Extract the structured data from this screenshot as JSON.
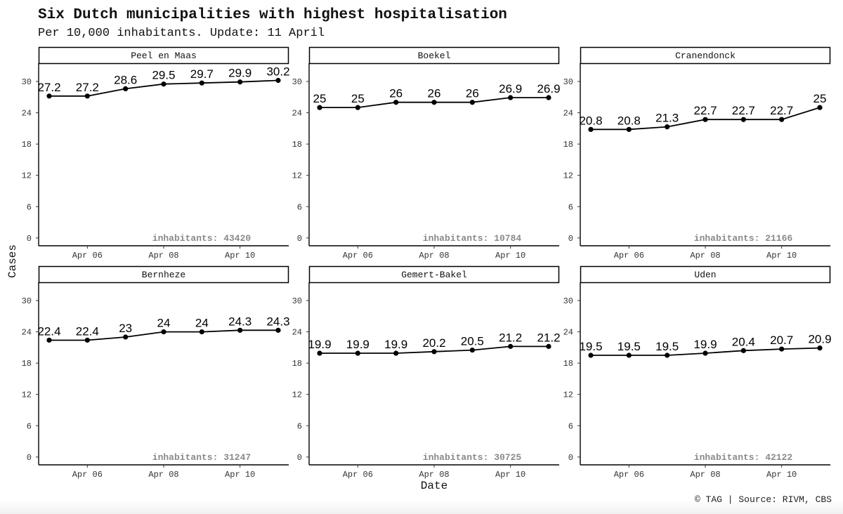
{
  "chart_data": {
    "type": "line",
    "title": "Six Dutch municipalities with highest hospitalisation",
    "subtitle": "Per 10,000 inhabitants. Update: 11 April",
    "caption": "© TAG | Source: RIVM, CBS",
    "xlabel": "Date",
    "ylabel": "Cases",
    "x": [
      "2020-04-05",
      "2020-04-06",
      "2020-04-07",
      "2020-04-08",
      "2020-04-09",
      "2020-04-10",
      "2020-04-11"
    ],
    "x_ticks": [
      {
        "date": "2020-04-06",
        "label": "Apr 06"
      },
      {
        "date": "2020-04-08",
        "label": "Apr 08"
      },
      {
        "date": "2020-04-10",
        "label": "Apr 10"
      }
    ],
    "y_ticks": [
      0,
      6,
      12,
      18,
      24,
      30
    ],
    "ylim": [
      -1.5,
      33.5
    ],
    "grid": false,
    "panels": [
      {
        "name": "Peel en Maas",
        "inhabitants_label": "inhabitants: 43420",
        "values": [
          27.2,
          27.2,
          28.6,
          29.5,
          29.7,
          29.9,
          30.2
        ],
        "labels": [
          "27.2",
          "27.2",
          "28.6",
          "29.5",
          "29.7",
          "29.9",
          "30.2"
        ]
      },
      {
        "name": "Boekel",
        "inhabitants_label": "inhabitants: 10784",
        "values": [
          25,
          25,
          26,
          26,
          26,
          26.9,
          26.9
        ],
        "labels": [
          "25",
          "25",
          "26",
          "26",
          "26",
          "26.9",
          "26.9"
        ]
      },
      {
        "name": "Cranendonck",
        "inhabitants_label": "inhabitants: 21166",
        "values": [
          20.8,
          20.8,
          21.3,
          22.7,
          22.7,
          22.7,
          25
        ],
        "labels": [
          "20.8",
          "20.8",
          "21.3",
          "22.7",
          "22.7",
          "22.7",
          "25"
        ]
      },
      {
        "name": "Bernheze",
        "inhabitants_label": "inhabitants: 31247",
        "values": [
          22.4,
          22.4,
          23,
          24,
          24,
          24.3,
          24.3
        ],
        "labels": [
          "22.4",
          "22.4",
          "23",
          "24",
          "24",
          "24.3",
          "24.3"
        ]
      },
      {
        "name": "Gemert-Bakel",
        "inhabitants_label": "inhabitants: 30725",
        "values": [
          19.9,
          19.9,
          19.9,
          20.2,
          20.5,
          21.2,
          21.2
        ],
        "labels": [
          "19.9",
          "19.9",
          "19.9",
          "20.2",
          "20.5",
          "21.2",
          "21.2"
        ]
      },
      {
        "name": "Uden",
        "inhabitants_label": "inhabitants: 42122",
        "values": [
          19.5,
          19.5,
          19.5,
          19.9,
          20.4,
          20.7,
          20.9
        ],
        "labels": [
          "19.5",
          "19.5",
          "19.5",
          "19.9",
          "20.4",
          "20.7",
          "20.9"
        ]
      }
    ]
  }
}
